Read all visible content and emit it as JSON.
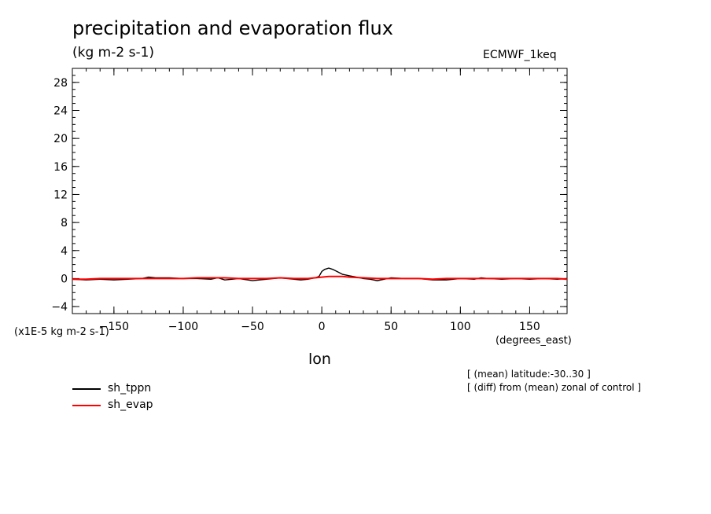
{
  "title": "precipitation and evaporation flux",
  "units": "(kg m-2 s-1)",
  "model": "ECMWF_1keq",
  "y_axis_unit": "(x1E-5 kg m-2 s-1)",
  "x_axis_unit": "(degrees_east)",
  "notes": [
    "[ (mean) latitude:-30..30 ]",
    "[ (diff) from (mean) zonal of control ]"
  ],
  "colors": {
    "sh_tppn": "#000000",
    "sh_evap": "#ff0000"
  },
  "chart_data": {
    "type": "line",
    "title": "precipitation and evaporation flux",
    "xlabel": "lon",
    "ylabel": "(x1E-5 kg m-2 s-1)",
    "xlim": [
      -180,
      177
    ],
    "ylim": [
      -5,
      30
    ],
    "x_ticks": [
      -150,
      -100,
      -50,
      0,
      50,
      100,
      150
    ],
    "y_ticks": [
      -4,
      0,
      4,
      8,
      12,
      16,
      20,
      24,
      28
    ],
    "legend_position": "bottom-left",
    "series": [
      {
        "name": "sh_tppn",
        "x": [
          -180,
          -170,
          -160,
          -150,
          -140,
          -130,
          -125,
          -120,
          -110,
          -100,
          -90,
          -80,
          -75,
          -70,
          -60,
          -50,
          -45,
          -40,
          -30,
          -20,
          -15,
          -10,
          -5,
          -2,
          0,
          2,
          5,
          8,
          12,
          15,
          20,
          25,
          30,
          35,
          40,
          45,
          50,
          60,
          70,
          80,
          90,
          100,
          110,
          115,
          120,
          130,
          140,
          150,
          160,
          170,
          177
        ],
        "y": [
          -0.1,
          -0.2,
          -0.1,
          -0.2,
          -0.1,
          0.0,
          0.2,
          0.1,
          0.1,
          0.0,
          0.0,
          -0.1,
          0.1,
          -0.2,
          0.0,
          -0.3,
          -0.2,
          -0.1,
          0.1,
          -0.1,
          -0.2,
          -0.1,
          0.1,
          0.3,
          1.0,
          1.3,
          1.5,
          1.3,
          0.9,
          0.6,
          0.4,
          0.2,
          0.0,
          -0.1,
          -0.3,
          -0.1,
          0.1,
          0.0,
          0.0,
          -0.2,
          -0.2,
          0.0,
          -0.1,
          0.1,
          0.0,
          -0.1,
          0.0,
          -0.1,
          0.0,
          -0.1,
          0.0
        ]
      },
      {
        "name": "sh_evap",
        "x": [
          -180,
          -170,
          -160,
          -150,
          -140,
          -130,
          -120,
          -110,
          -100,
          -90,
          -80,
          -70,
          -60,
          -50,
          -40,
          -30,
          -20,
          -10,
          -5,
          0,
          5,
          10,
          15,
          20,
          30,
          40,
          50,
          60,
          70,
          80,
          90,
          100,
          110,
          120,
          130,
          140,
          150,
          160,
          170,
          177
        ],
        "y": [
          -0.1,
          -0.1,
          0.0,
          0.0,
          0.0,
          0.0,
          0.0,
          0.0,
          0.0,
          0.1,
          0.1,
          0.1,
          0.0,
          0.0,
          0.0,
          0.1,
          0.0,
          0.0,
          0.1,
          0.2,
          0.3,
          0.3,
          0.3,
          0.2,
          0.1,
          0.0,
          0.0,
          0.0,
          0.0,
          -0.1,
          0.0,
          0.0,
          0.0,
          0.0,
          0.0,
          0.0,
          0.0,
          0.0,
          0.0,
          -0.1
        ]
      }
    ]
  }
}
